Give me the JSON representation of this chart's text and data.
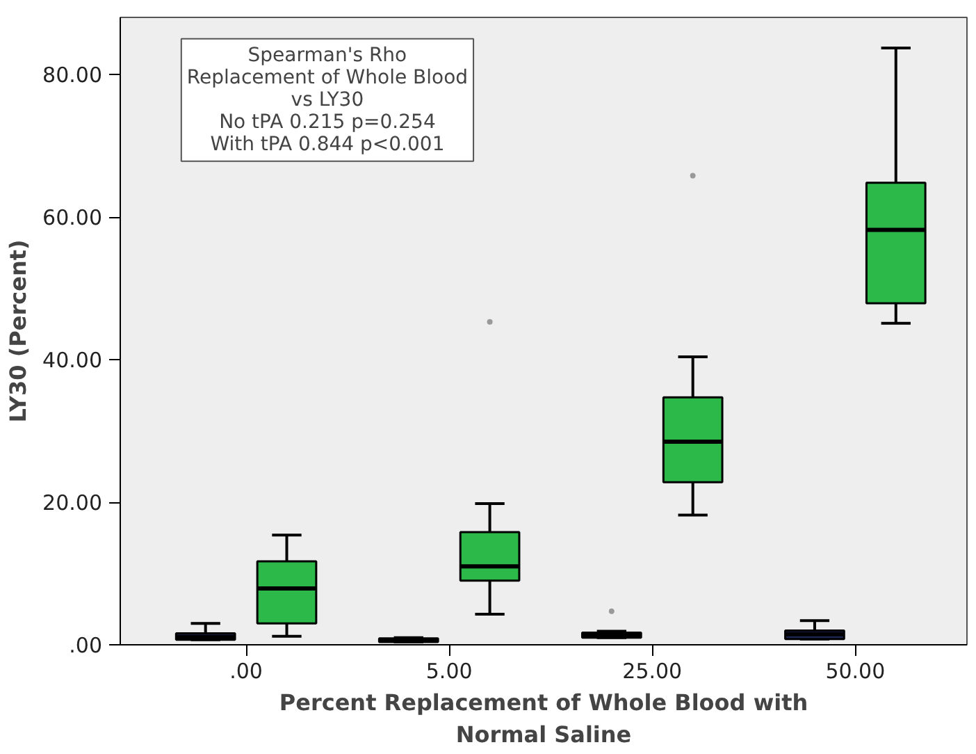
{
  "chart_data": {
    "type": "box",
    "xlabel": "Percent Replacement of Whole Blood with Normal Saline",
    "ylabel": "LY30 (Percent)",
    "categories": [
      ".00",
      "5.00",
      "25.00",
      "50.00"
    ],
    "ylim": [
      0,
      88
    ],
    "yticks": [
      {
        "value": 0,
        "label": ".00"
      },
      {
        "value": 20,
        "label": "20.00"
      },
      {
        "value": 40,
        "label": "40.00"
      },
      {
        "value": 60,
        "label": "60.00"
      },
      {
        "value": 80,
        "label": "80.00"
      }
    ],
    "annotations": [
      "Spearman's Rho",
      "Replacement of Whole Blood",
      "vs LY30",
      "No tPA 0.215 p=0.254",
      "With tPA 0.844 p<0.001"
    ],
    "series": [
      {
        "color": "#1c2550",
        "boxes": [
          {
            "low": 0.7,
            "q1": 0.7,
            "median": 1.1,
            "q3": 1.6,
            "high": 3.0
          },
          {
            "low": 0.4,
            "q1": 0.4,
            "median": 0.6,
            "q3": 0.9,
            "high": 1.0
          },
          {
            "low": 1.0,
            "q1": 1.0,
            "median": 1.4,
            "q3": 1.7,
            "high": 1.9,
            "outliers": [
              4.7
            ]
          },
          {
            "low": 0.8,
            "q1": 0.8,
            "median": 1.5,
            "q3": 2.0,
            "high": 3.4
          }
        ]
      },
      {
        "color": "#2db84a",
        "boxes": [
          {
            "low": 1.2,
            "q1": 3.0,
            "median": 7.9,
            "q3": 11.7,
            "high": 15.4
          },
          {
            "low": 4.3,
            "q1": 9.0,
            "median": 11.0,
            "q3": 15.8,
            "high": 19.8,
            "outliers": [
              45.3
            ]
          },
          {
            "low": 18.2,
            "q1": 22.8,
            "median": 28.5,
            "q3": 34.7,
            "high": 40.4,
            "outliers": [
              65.8
            ]
          },
          {
            "low": 45.1,
            "q1": 47.9,
            "median": 58.2,
            "q3": 64.8,
            "high": 83.7
          }
        ]
      }
    ]
  }
}
